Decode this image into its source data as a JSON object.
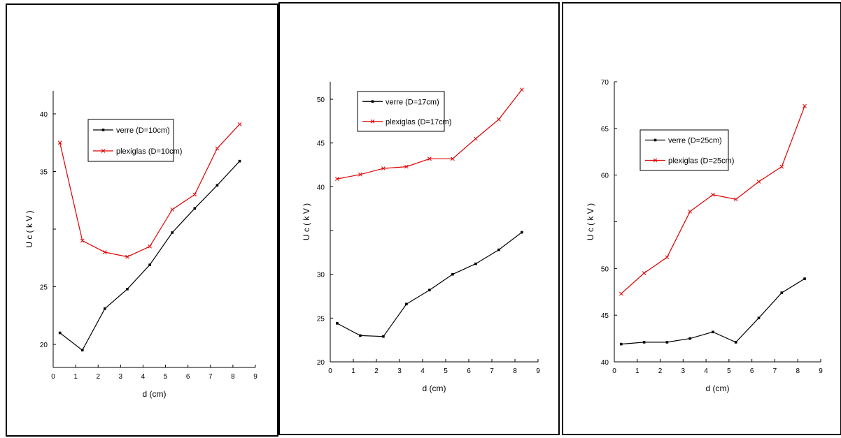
{
  "chart_data": [
    {
      "type": "line",
      "xlabel": "d (cm)",
      "ylabel": "U c  ( k V )",
      "xlim": [
        0,
        9
      ],
      "ylim": [
        18,
        42
      ],
      "xticks": [
        "0",
        "1",
        "2",
        "3",
        "4",
        "5",
        "6",
        "7",
        "8",
        "9"
      ],
      "yticks": [
        {
          "v": 20,
          "label": "20"
        },
        {
          "v": 25,
          "label": "25"
        },
        {
          "v": 30,
          "label": ""
        },
        {
          "v": 35,
          "label": "35"
        },
        {
          "v": 40,
          "label": "40"
        }
      ],
      "x": [
        0.3,
        1.3,
        2.3,
        3.3,
        4.3,
        5.3,
        6.3,
        7.3,
        8.3
      ],
      "series": [
        {
          "name": "verre (D=10cm)",
          "color": "#000000",
          "marker": "dot",
          "values": [
            21.0,
            19.5,
            23.1,
            24.8,
            26.9,
            29.7,
            31.8,
            33.8,
            35.9
          ]
        },
        {
          "name": "plexiglas (D=10cm)",
          "color": "#e00000",
          "marker": "x",
          "values": [
            37.5,
            29.0,
            28.0,
            27.6,
            28.5,
            31.7,
            33.0,
            37.0,
            39.1
          ]
        }
      ],
      "legend": "upper-center"
    },
    {
      "type": "line",
      "xlabel": "d (cm)",
      "ylabel": "U c  ( k V )",
      "xlim": [
        0,
        9
      ],
      "ylim": [
        20,
        52
      ],
      "xticks": [
        "0",
        "1",
        "2",
        "3",
        "4",
        "5",
        "6",
        "7",
        "8",
        "9"
      ],
      "yticks": [
        {
          "v": 20,
          "label": "20"
        },
        {
          "v": 25,
          "label": "25"
        },
        {
          "v": 30,
          "label": "30"
        },
        {
          "v": 35,
          "label": ""
        },
        {
          "v": 40,
          "label": "40"
        },
        {
          "v": 45,
          "label": "45"
        },
        {
          "v": 50,
          "label": "50"
        }
      ],
      "x": [
        0.3,
        1.3,
        2.3,
        3.3,
        4.3,
        5.3,
        6.3,
        7.3,
        8.3
      ],
      "series": [
        {
          "name": "verre (D=17cm)",
          "color": "#000000",
          "marker": "dot",
          "values": [
            24.4,
            23.0,
            22.9,
            26.6,
            28.2,
            30.0,
            31.2,
            32.8,
            34.8
          ]
        },
        {
          "name": "plexiglas (D=17cm)",
          "color": "#e00000",
          "marker": "x",
          "values": [
            40.9,
            41.4,
            42.1,
            42.3,
            43.2,
            43.2,
            45.5,
            47.7,
            51.1
          ]
        }
      ],
      "legend": "upper-left"
    },
    {
      "type": "line",
      "xlabel": "d (cm)",
      "ylabel": "U c  ( k V )",
      "xlim": [
        0,
        9
      ],
      "ylim": [
        40,
        70
      ],
      "xticks": [
        "0",
        "1",
        "2",
        "3",
        "4",
        "5",
        "6",
        "7",
        "8",
        "9"
      ],
      "yticks": [
        {
          "v": 40,
          "label": "40"
        },
        {
          "v": 45,
          "label": "45"
        },
        {
          "v": 50,
          "label": "50"
        },
        {
          "v": 55,
          "label": ""
        },
        {
          "v": 60,
          "label": "60"
        },
        {
          "v": 65,
          "label": "65"
        },
        {
          "v": 70,
          "label": "70"
        }
      ],
      "x": [
        0.3,
        1.3,
        2.3,
        3.3,
        4.3,
        5.3,
        6.3,
        7.3,
        8.3
      ],
      "series": [
        {
          "name": "verre (D=25cm)",
          "color": "#000000",
          "marker": "dot",
          "values": [
            41.9,
            42.1,
            42.1,
            42.5,
            43.2,
            42.1,
            44.7,
            47.4,
            48.9
          ]
        },
        {
          "name": "plexiglas (D=25cm)",
          "color": "#e00000",
          "marker": "x",
          "values": [
            47.3,
            49.5,
            51.2,
            56.1,
            57.9,
            57.4,
            59.3,
            60.9,
            67.4
          ]
        }
      ],
      "legend": "upper-left"
    }
  ]
}
